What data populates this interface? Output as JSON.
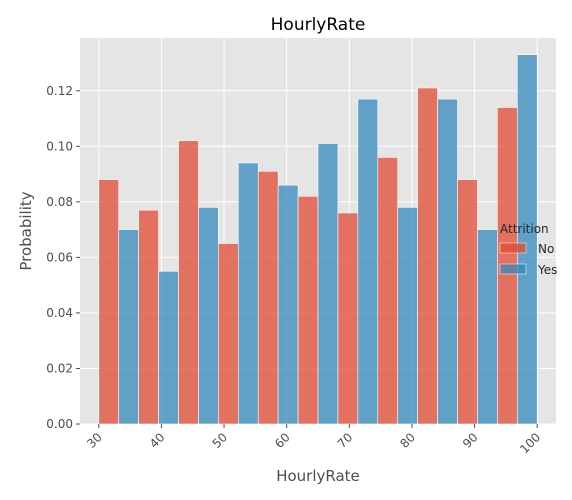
{
  "chart_data": {
    "type": "bar",
    "title": "HourlyRate",
    "xlabel": "HourlyRate",
    "ylabel": "Probability",
    "xlim": [
      27,
      103
    ],
    "ylim": [
      0,
      0.139
    ],
    "x_ticks": [
      30,
      40,
      50,
      60,
      70,
      80,
      90,
      100
    ],
    "y_ticks": [
      0.0,
      0.02,
      0.04,
      0.06,
      0.08,
      0.1,
      0.12
    ],
    "grid": true,
    "legend": {
      "title": "Attrition",
      "placement": "right"
    },
    "bin_edges": [
      30,
      36.3636,
      42.7273,
      49.0909,
      55.4545,
      61.8182,
      68.1818,
      74.5455,
      80.9091,
      87.2727,
      93.6364,
      100
    ],
    "series": [
      {
        "name": "No",
        "color": "#e24a33",
        "values": [
          0.088,
          0.077,
          0.102,
          0.065,
          0.091,
          0.082,
          0.076,
          0.096,
          0.121,
          0.088,
          0.114
        ]
      },
      {
        "name": "Yes",
        "color": "#348abd",
        "values": [
          0.07,
          0.055,
          0.078,
          0.094,
          0.086,
          0.101,
          0.117,
          0.078,
          0.117,
          0.07,
          0.133
        ]
      }
    ]
  }
}
